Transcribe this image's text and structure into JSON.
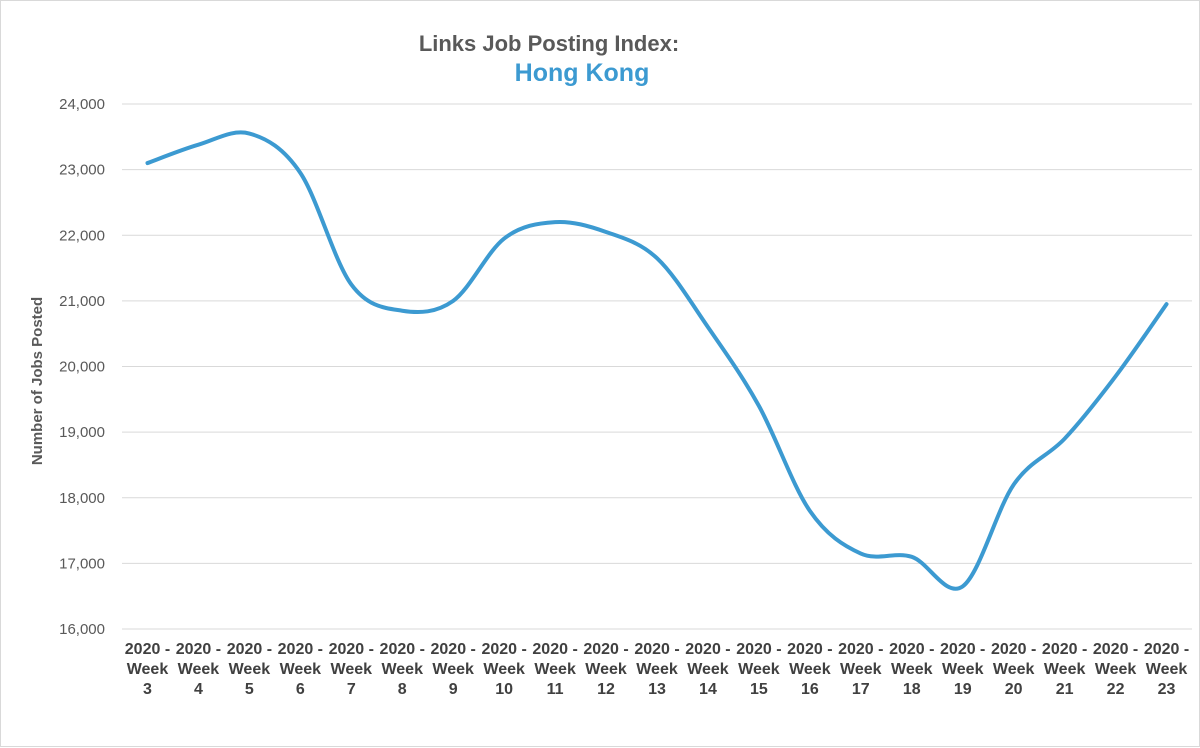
{
  "chart_data": {
    "type": "line",
    "title": "Links Job Posting Index:",
    "subtitle": "Hong Kong",
    "xlabel": "",
    "ylabel": "Number of Jobs Posted",
    "ylim": [
      16000,
      24000
    ],
    "yticks": [
      16000,
      17000,
      18000,
      19000,
      20000,
      21000,
      22000,
      23000,
      24000
    ],
    "ytick_labels": [
      "16,000",
      "17,000",
      "18,000",
      "19,000",
      "20,000",
      "21,000",
      "22,000",
      "23,000",
      "24,000"
    ],
    "grid": true,
    "legend": "none",
    "categories": [
      "2020 - Week 3",
      "2020 - Week 4",
      "2020 - Week 5",
      "2020 - Week 6",
      "2020 - Week 7",
      "2020 - Week 8",
      "2020 - Week 9",
      "2020 - Week 10",
      "2020 - Week 11",
      "2020 - Week 12",
      "2020 - Week 13",
      "2020 - Week 14",
      "2020 - Week 15",
      "2020 - Week 16",
      "2020 - Week 17",
      "2020 - Week 18",
      "2020 - Week 19",
      "2020 - Week 20",
      "2020 - Week 21",
      "2020 - Week 22",
      "2020 - Week 23"
    ],
    "series": [
      {
        "values": [
          23100,
          23380,
          23550,
          22950,
          21250,
          20850,
          21000,
          21950,
          22200,
          22050,
          21650,
          20600,
          19400,
          17800,
          17150,
          17100,
          16650,
          18200,
          18900,
          19850,
          20950
        ]
      }
    ]
  },
  "style": {
    "line_color": "#3c9ad1",
    "grid_color": "#d9d9d9"
  }
}
